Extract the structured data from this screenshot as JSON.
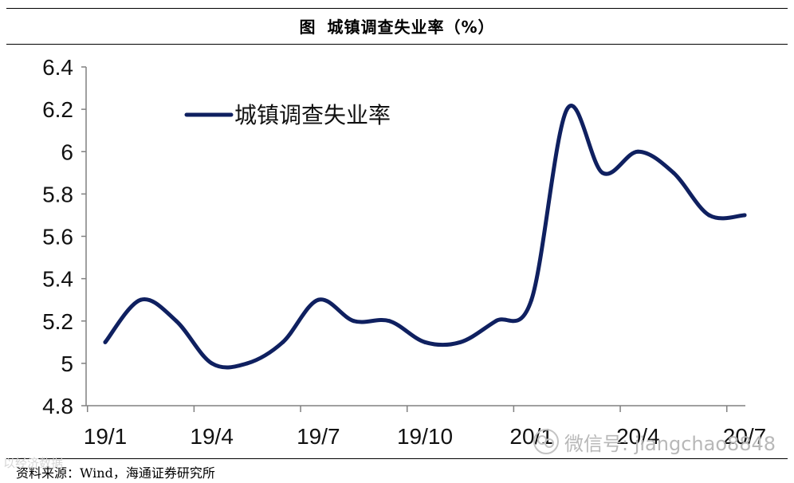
{
  "figure": {
    "label": "图",
    "title": "城镇调查失业率（%）"
  },
  "source_text": "资料来源：Wind，海通证券研究所",
  "watermarks": {
    "left": "以经济数据",
    "right": "微信号: jiangchao8848"
  },
  "colors": {
    "series": "#0f2060",
    "axis": "#808080",
    "text": "#111111"
  },
  "chart_data": {
    "type": "line",
    "title": "城镇调查失业率（%）",
    "xlabel": "",
    "ylabel": "",
    "x_tick_labels": [
      "19/1",
      "19/4",
      "19/7",
      "19/10",
      "20/1",
      "20/4",
      "20/7"
    ],
    "y_ticks": [
      4.8,
      5,
      5.2,
      5.4,
      5.6,
      5.8,
      6,
      6.2,
      6.4
    ],
    "y_tick_labels": [
      "4.8",
      "5",
      "5.2",
      "5.4",
      "5.6",
      "5.8",
      "6",
      "6.2",
      "6.4"
    ],
    "ylim": [
      4.8,
      6.4
    ],
    "grid": false,
    "legend_position": "top-left",
    "x": [
      "2019-01",
      "2019-02",
      "2019-03",
      "2019-04",
      "2019-05",
      "2019-06",
      "2019-07",
      "2019-08",
      "2019-09",
      "2019-10",
      "2019-11",
      "2019-12",
      "2020-01",
      "2020-02",
      "2020-03",
      "2020-04",
      "2020-05",
      "2020-06",
      "2020-07"
    ],
    "series": [
      {
        "name": "城镇调查失业率",
        "values": [
          5.1,
          5.3,
          5.2,
          5.0,
          5.0,
          5.1,
          5.3,
          5.2,
          5.2,
          5.1,
          5.1,
          5.2,
          5.3,
          6.2,
          5.9,
          6.0,
          5.9,
          5.7,
          5.7
        ]
      }
    ]
  }
}
